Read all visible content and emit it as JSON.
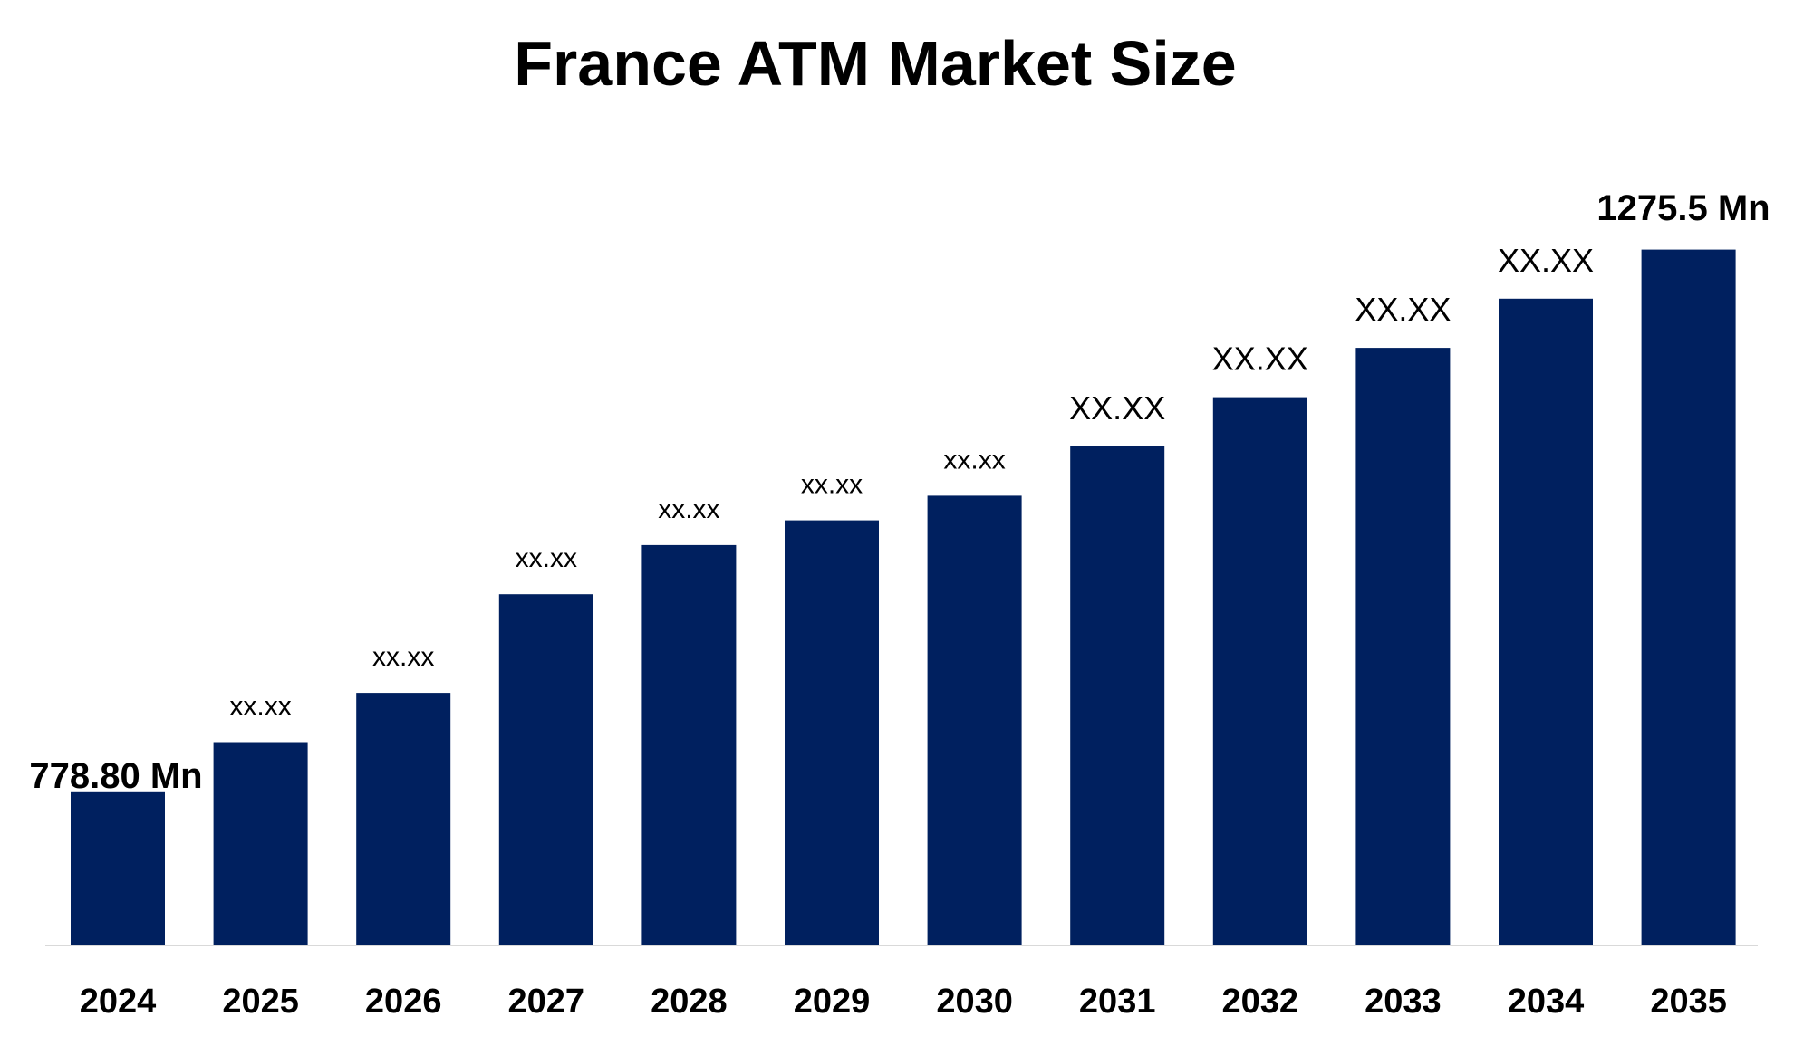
{
  "chart_data": {
    "type": "bar",
    "title": "France ATM Market Size",
    "xlabel": "",
    "ylabel": "",
    "categories": [
      "2024",
      "2025",
      "2026",
      "2027",
      "2028",
      "2029",
      "2030",
      "2031",
      "2032",
      "2033",
      "2034",
      "2035"
    ],
    "values": [
      778.8,
      823.9,
      869.1,
      959.5,
      1004.6,
      1027.2,
      1049.8,
      1095.0,
      1140.2,
      1185.4,
      1230.5,
      1275.5
    ],
    "data_labels": [
      "778.80 Mn",
      "xx.xx",
      "xx.xx",
      "xx.xx",
      "xx.xx",
      "xx.xx",
      "xx.xx",
      "XX.XX",
      "XX.XX",
      "XX.XX",
      "XX.XX",
      "1275.5 Mn"
    ],
    "ylim": [
      637.5,
      1320
    ],
    "grid": false,
    "legend": "none",
    "colors": {
      "bar": "#00205f",
      "axis": "#d9d9d9",
      "text": "#000000"
    }
  }
}
